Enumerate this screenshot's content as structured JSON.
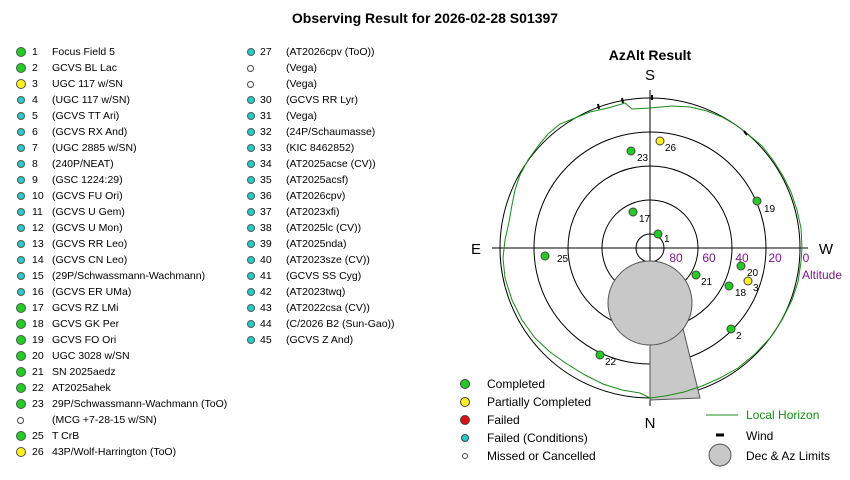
{
  "title": "Observing Result for 2026-02-28 S01397",
  "colors": {
    "completed": "#22cc22",
    "partially_completed": "#ffee22",
    "failed": "#dd1111",
    "failed_conditions": "#22cccc",
    "missed": "#ffffff",
    "horizon": "#1a8a1a",
    "altitude_label": "#7a1a8a",
    "limits": "#c8c8c8"
  },
  "list_left": [
    {
      "n": "1",
      "label": "Focus Field 5",
      "status": "completed"
    },
    {
      "n": "2",
      "label": "GCVS BL Lac",
      "status": "completed"
    },
    {
      "n": "3",
      "label": "UGC 117 w/SN",
      "status": "partially_completed"
    },
    {
      "n": "4",
      "label": "(UGC 117 w/SN)",
      "status": "failed_conditions"
    },
    {
      "n": "5",
      "label": "(GCVS TT Ari)",
      "status": "failed_conditions"
    },
    {
      "n": "6",
      "label": "(GCVS RX And)",
      "status": "failed_conditions"
    },
    {
      "n": "7",
      "label": "(UGC 2885 w/SN)",
      "status": "failed_conditions"
    },
    {
      "n": "8",
      "label": "(240P/NEAT)",
      "status": "failed_conditions"
    },
    {
      "n": "9",
      "label": "(GSC 1224:29)",
      "status": "failed_conditions"
    },
    {
      "n": "10",
      "label": "(GCVS FU Ori)",
      "status": "failed_conditions"
    },
    {
      "n": "11",
      "label": "(GCVS U Gem)",
      "status": "failed_conditions"
    },
    {
      "n": "12",
      "label": "(GCVS U Mon)",
      "status": "failed_conditions"
    },
    {
      "n": "13",
      "label": "(GCVS RR Leo)",
      "status": "failed_conditions"
    },
    {
      "n": "14",
      "label": "(GCVS CN Leo)",
      "status": "failed_conditions"
    },
    {
      "n": "15",
      "label": "(29P/Schwassmann-Wachmann)",
      "status": "failed_conditions"
    },
    {
      "n": "16",
      "label": "(GCVS ER UMa)",
      "status": "failed_conditions"
    },
    {
      "n": "17",
      "label": "GCVS RZ LMi",
      "status": "completed"
    },
    {
      "n": "18",
      "label": "GCVS GK Per",
      "status": "completed"
    },
    {
      "n": "19",
      "label": "GCVS FO Ori",
      "status": "completed"
    },
    {
      "n": "20",
      "label": "UGC 3028 w/SN",
      "status": "completed"
    },
    {
      "n": "21",
      "label": "SN 2025aedz",
      "status": "completed"
    },
    {
      "n": "22",
      "label": "AT2025ahek",
      "status": "completed"
    },
    {
      "n": "23",
      "label": "29P/Schwassmann-Wachmann (ToO)",
      "status": "completed"
    },
    {
      "n": "",
      "label": "(MCG +7-28-15 w/SN)",
      "status": "missed"
    },
    {
      "n": "25",
      "label": "T CrB",
      "status": "completed"
    },
    {
      "n": "26",
      "label": "43P/Wolf-Harrington (ToO)",
      "status": "partially_completed"
    }
  ],
  "list_right": [
    {
      "n": "27",
      "label": "(AT2026cpv (ToO))",
      "status": "failed_conditions"
    },
    {
      "n": "",
      "label": "(Vega)",
      "status": "missed"
    },
    {
      "n": "",
      "label": "(Vega)",
      "status": "missed"
    },
    {
      "n": "30",
      "label": "(GCVS RR Lyr)",
      "status": "failed_conditions"
    },
    {
      "n": "31",
      "label": "(Vega)",
      "status": "failed_conditions"
    },
    {
      "n": "32",
      "label": "(24P/Schaumasse)",
      "status": "failed_conditions"
    },
    {
      "n": "33",
      "label": "(KIC 8462852)",
      "status": "failed_conditions"
    },
    {
      "n": "34",
      "label": "(AT2025acse (CV))",
      "status": "failed_conditions"
    },
    {
      "n": "35",
      "label": "(AT2025acsf)",
      "status": "failed_conditions"
    },
    {
      "n": "36",
      "label": "(AT2026cpv)",
      "status": "failed_conditions"
    },
    {
      "n": "37",
      "label": "(AT2023xfi)",
      "status": "failed_conditions"
    },
    {
      "n": "38",
      "label": "(AT2025lc (CV))",
      "status": "failed_conditions"
    },
    {
      "n": "39",
      "label": "(AT2025nda)",
      "status": "failed_conditions"
    },
    {
      "n": "40",
      "label": "(AT2023sze (CV))",
      "status": "failed_conditions"
    },
    {
      "n": "41",
      "label": "(GCVS SS Cyg)",
      "status": "failed_conditions"
    },
    {
      "n": "42",
      "label": "(AT2023twq)",
      "status": "failed_conditions"
    },
    {
      "n": "43",
      "label": "(AT2022csa (CV))",
      "status": "failed_conditions"
    },
    {
      "n": "44",
      "label": "(C/2026 B2 (Sun-Gao))",
      "status": "failed_conditions"
    },
    {
      "n": "45",
      "label": "(GCVS Z And)",
      "status": "failed_conditions"
    }
  ],
  "azalt": {
    "title": "AzAlt Result",
    "compass": {
      "north": "N",
      "south": "S",
      "east": "E",
      "west": "W"
    },
    "altitude_ticks": [
      "80",
      "60",
      "40",
      "20",
      "0"
    ],
    "altitude_label": "Altitude",
    "markers": [
      {
        "n": "1",
        "status": "completed"
      },
      {
        "n": "2",
        "status": "completed"
      },
      {
        "n": "3",
        "status": "partially_completed"
      },
      {
        "n": "17",
        "status": "completed"
      },
      {
        "n": "18",
        "status": "completed"
      },
      {
        "n": "19",
        "status": "completed"
      },
      {
        "n": "20",
        "status": "completed"
      },
      {
        "n": "21",
        "status": "completed"
      },
      {
        "n": "22",
        "status": "completed"
      },
      {
        "n": "23",
        "status": "completed"
      },
      {
        "n": "25",
        "status": "completed"
      },
      {
        "n": "26",
        "status": "partially_completed"
      }
    ]
  },
  "legend": {
    "completed": "Completed",
    "partially_completed": "Partially Completed",
    "failed": "Failed",
    "failed_conditions": "Failed (Conditions)",
    "missed": "Missed or Cancelled",
    "horizon": "Local Horizon",
    "wind": "Wind",
    "limits": "Dec & Az Limits"
  }
}
